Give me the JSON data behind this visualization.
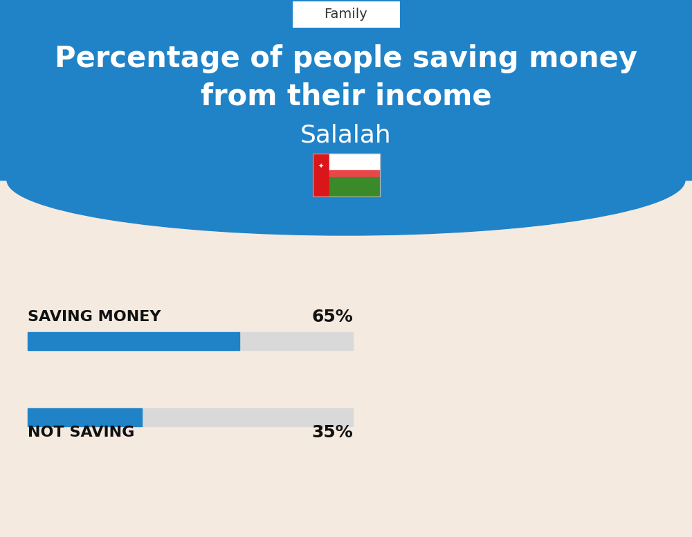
{
  "title_line1": "Percentage of people saving money",
  "title_line2": "from their income",
  "subtitle": "Salalah",
  "category_label": "Family",
  "bar1_label": "SAVING MONEY",
  "bar1_value": 65,
  "bar1_pct": "65%",
  "bar2_label": "NOT SAVING",
  "bar2_value": 35,
  "bar2_pct": "35%",
  "blue_color": "#2083C8",
  "bg_bottom_color": "#F5EAE0",
  "bar_bg_color": "#D9D9D9",
  "text_color_white": "#FFFFFF",
  "text_color_dark": "#111111",
  "title_fontsize": 30,
  "subtitle_fontsize": 26,
  "bar_label_fontsize": 16,
  "pct_fontsize": 18,
  "family_fontsize": 14,
  "fig_width": 10,
  "fig_height": 7.76
}
